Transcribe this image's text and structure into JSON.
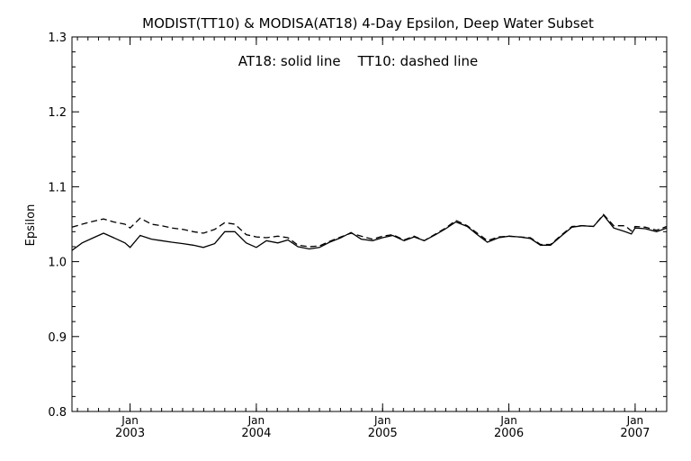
{
  "chart_data": {
    "type": "line",
    "title": "MODIST(TT10) & MODISA(AT18) 4-Day Epsilon, Deep Water Subset",
    "annotation": "AT18: solid line    TT10: dashed line",
    "ylabel": "Epsilon",
    "xlabel": "",
    "xlim": [
      2002.54,
      2007.25
    ],
    "ylim": [
      0.8,
      1.3
    ],
    "y_ticks": [
      "0.8",
      "0.9",
      "1.0",
      "1.1",
      "1.2",
      "1.3"
    ],
    "x_ticks": [
      {
        "month": "Jan",
        "year": "2003",
        "value": 2003.0
      },
      {
        "month": "Jan",
        "year": "2004",
        "value": 2004.0
      },
      {
        "month": "Jan",
        "year": "2005",
        "value": 2005.0
      },
      {
        "month": "Jan",
        "year": "2006",
        "value": 2006.0
      },
      {
        "month": "Jan",
        "year": "2007",
        "value": 2007.0
      }
    ],
    "grid": false,
    "series": [
      {
        "name": "AT18",
        "style": "solid",
        "color": "#000000",
        "x": [
          2002.54,
          2002.62,
          2002.71,
          2002.79,
          2002.87,
          2002.96,
          2003.0,
          2003.08,
          2003.17,
          2003.25,
          2003.33,
          2003.42,
          2003.5,
          2003.58,
          2003.67,
          2003.75,
          2003.83,
          2003.92,
          2004.0,
          2004.08,
          2004.17,
          2004.25,
          2004.33,
          2004.42,
          2004.5,
          2004.58,
          2004.67,
          2004.75,
          2004.83,
          2004.92,
          2005.0,
          2005.08,
          2005.17,
          2005.25,
          2005.33,
          2005.42,
          2005.5,
          2005.58,
          2005.67,
          2005.75,
          2005.83,
          2005.92,
          2006.0,
          2006.08,
          2006.17,
          2006.25,
          2006.33,
          2006.42,
          2006.5,
          2006.58,
          2006.67,
          2006.75,
          2006.83,
          2006.92,
          2006.97,
          2007.0,
          2007.08,
          2007.17,
          2007.25
        ],
        "values": [
          1.015,
          1.025,
          1.032,
          1.038,
          1.032,
          1.025,
          1.019,
          1.035,
          1.03,
          1.028,
          1.026,
          1.024,
          1.022,
          1.019,
          1.024,
          1.04,
          1.04,
          1.025,
          1.019,
          1.028,
          1.025,
          1.029,
          1.02,
          1.017,
          1.019,
          1.026,
          1.032,
          1.039,
          1.03,
          1.028,
          1.032,
          1.035,
          1.028,
          1.033,
          1.028,
          1.036,
          1.044,
          1.053,
          1.047,
          1.036,
          1.026,
          1.032,
          1.034,
          1.033,
          1.031,
          1.022,
          1.022,
          1.035,
          1.046,
          1.048,
          1.047,
          1.062,
          1.045,
          1.04,
          1.037,
          1.045,
          1.044,
          1.04,
          1.045
        ]
      },
      {
        "name": "TT10",
        "style": "dashed",
        "color": "#000000",
        "x": [
          2002.54,
          2002.62,
          2002.71,
          2002.79,
          2002.87,
          2002.96,
          2003.0,
          2003.08,
          2003.17,
          2003.25,
          2003.33,
          2003.42,
          2003.5,
          2003.58,
          2003.67,
          2003.75,
          2003.83,
          2003.92,
          2004.0,
          2004.08,
          2004.17,
          2004.25,
          2004.33,
          2004.42,
          2004.5,
          2004.58,
          2004.67,
          2004.75,
          2004.83,
          2004.92,
          2005.0,
          2005.08,
          2005.17,
          2005.25,
          2005.33,
          2005.42,
          2005.5,
          2005.58,
          2005.67,
          2005.75,
          2005.83,
          2005.92,
          2006.0,
          2006.08,
          2006.17,
          2006.25,
          2006.33,
          2006.42,
          2006.5,
          2006.58,
          2006.67,
          2006.75,
          2006.83,
          2006.92,
          2006.97,
          2007.0,
          2007.08,
          2007.17,
          2007.25
        ],
        "values": [
          1.046,
          1.05,
          1.054,
          1.057,
          1.053,
          1.05,
          1.045,
          1.058,
          1.05,
          1.048,
          1.045,
          1.043,
          1.04,
          1.038,
          1.043,
          1.052,
          1.05,
          1.036,
          1.033,
          1.032,
          1.034,
          1.032,
          1.022,
          1.02,
          1.021,
          1.027,
          1.033,
          1.038,
          1.034,
          1.03,
          1.034,
          1.036,
          1.029,
          1.034,
          1.028,
          1.037,
          1.045,
          1.055,
          1.048,
          1.038,
          1.028,
          1.033,
          1.034,
          1.033,
          1.032,
          1.023,
          1.023,
          1.036,
          1.047,
          1.048,
          1.047,
          1.063,
          1.048,
          1.048,
          1.041,
          1.047,
          1.046,
          1.042,
          1.047
        ]
      }
    ]
  }
}
